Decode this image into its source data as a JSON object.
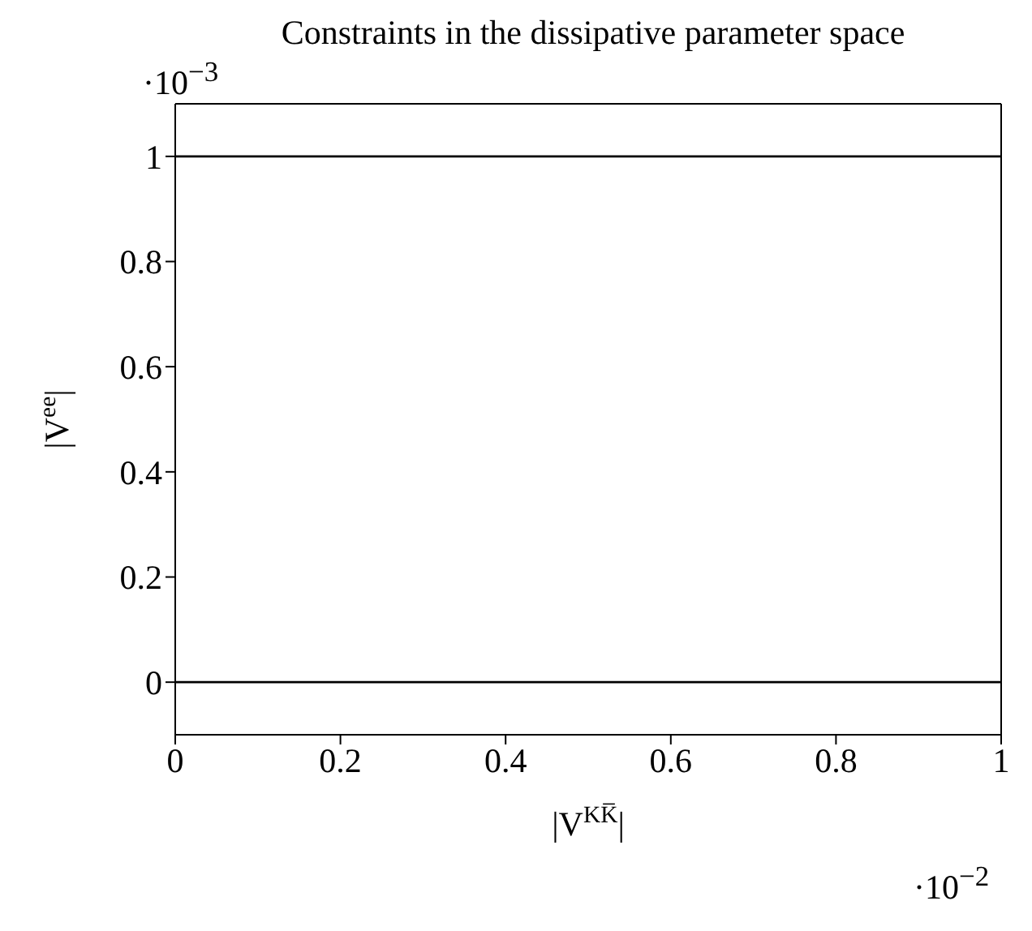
{
  "chart_data": {
    "type": "line",
    "title": "Constraints in the dissipative parameter space",
    "xlabel": "|V$^{KK̅}$|",
    "ylabel": "|V$^{ee}$|",
    "annotations": [
      "·10$^{−3}$",
      "·10$^{−2}$"
    ],
    "ref_lines": [
      {
        "axis": "y",
        "value": 1,
        "color": "#000000",
        "line_style": "solid"
      },
      {
        "axis": "y",
        "value": 0,
        "color": "#000000",
        "line_style": "solid"
      }
    ],
    "xlim": [
      0,
      1
    ],
    "ylim": [
      -0.1,
      1.1
    ],
    "xticks": [
      0,
      0.2,
      0.4,
      0.6,
      0.8,
      1
    ],
    "yticks": [
      0,
      0.2,
      0.4,
      0.6,
      0.8,
      1
    ]
  }
}
